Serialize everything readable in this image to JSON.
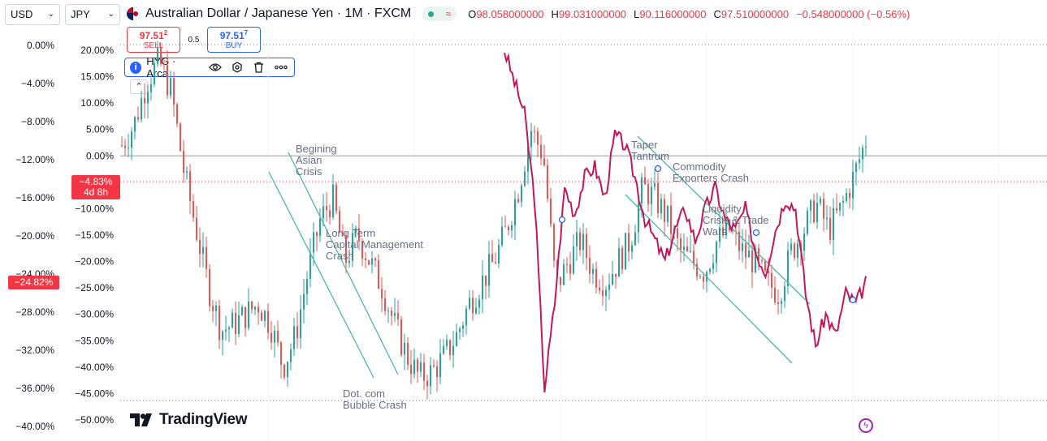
{
  "toolbar": {
    "left_currency": "USD",
    "right_currency": "JPY"
  },
  "header": {
    "title": "Australian Dollar / Japanese Yen · 1M · FXCM",
    "status_icon": "market-open-dot",
    "delay_icon": "approx-icon",
    "ohlc": [
      {
        "label": "O",
        "value": "98.058000000"
      },
      {
        "label": "H",
        "value": "99.031000000"
      },
      {
        "label": "L",
        "value": "90.116000000"
      },
      {
        "label": "C",
        "value": "97.510000000"
      }
    ],
    "change": "−0.548000000 (−0.56%)"
  },
  "trade": {
    "sell_price": "97.51",
    "sell_price_sup": "2",
    "sell_label": "SELL",
    "spread": "0.5",
    "buy_price": "97.51",
    "buy_price_sup": "7",
    "buy_label": "BUY"
  },
  "compare": {
    "symbol": "HYG · Arca",
    "icons": [
      "eye-icon",
      "settings-icon",
      "trash-icon",
      "more-icon"
    ]
  },
  "badges": {
    "left_top": "−4.83%",
    "left_bottom": "4d 8h",
    "mid": "−24.82%"
  },
  "branding": {
    "logo_text": "TradingView"
  },
  "colors": {
    "up": "#26a69a",
    "down": "#ef5350",
    "compare_line": "#c2185b",
    "trend": "#4db6ac",
    "annotation": "#667085",
    "grid": "#f0f3fa"
  },
  "chart_data": {
    "type": "candlestick",
    "axes": {
      "outer_left": {
        "ticks": [
          "0.00%",
          "−4.00%",
          "−8.00%",
          "−12.00%",
          "−16.00%",
          "−20.00%",
          "−24.00%",
          "−28.00%",
          "−32.00%",
          "−36.00%",
          "−40.00%"
        ],
        "range": [
          -40,
          0
        ]
      },
      "inner_left": {
        "ticks": [
          "20.00%",
          "15.00%",
          "10.00%",
          "5.00%",
          "0.00%",
          "−5.00%",
          "−10.00%",
          "−15.00%",
          "−20.00%",
          "−25.00%",
          "−30.00%",
          "−35.00%",
          "−40.00%",
          "−45.00%",
          "−50.00%"
        ],
        "range": [
          -50,
          20
        ]
      }
    },
    "main_series_trace": [
      [
        0,
        2
      ],
      [
        1,
        6
      ],
      [
        2,
        14
      ],
      [
        3,
        18
      ],
      [
        4,
        12
      ],
      [
        5,
        -3
      ],
      [
        6,
        -14
      ],
      [
        7,
        -25
      ],
      [
        8,
        -33
      ],
      [
        9,
        -32
      ],
      [
        10,
        -30
      ],
      [
        11,
        -28
      ],
      [
        12,
        -32
      ],
      [
        13,
        -40
      ],
      [
        14,
        -34
      ],
      [
        15,
        -22
      ],
      [
        16,
        -12
      ],
      [
        17,
        -8
      ],
      [
        18,
        -20
      ],
      [
        19,
        -15
      ],
      [
        20,
        -20
      ],
      [
        21,
        -25
      ],
      [
        22,
        -32
      ],
      [
        23,
        -38
      ],
      [
        24,
        -42
      ],
      [
        25,
        -41
      ],
      [
        26,
        -38
      ],
      [
        27,
        -34
      ],
      [
        28,
        -28
      ],
      [
        29,
        -24
      ],
      [
        30,
        -20
      ],
      [
        31,
        -14
      ],
      [
        32,
        -6
      ],
      [
        33,
        5
      ],
      [
        34,
        0
      ],
      [
        35,
        -25
      ],
      [
        36,
        -20
      ],
      [
        37,
        -16
      ],
      [
        38,
        -22
      ],
      [
        39,
        -24
      ],
      [
        40,
        -20
      ],
      [
        41,
        -16
      ],
      [
        42,
        -6
      ],
      [
        43,
        -8
      ],
      [
        44,
        -12
      ],
      [
        45,
        -18
      ],
      [
        46,
        -20
      ],
      [
        47,
        -22
      ],
      [
        48,
        -16
      ],
      [
        49,
        -14
      ],
      [
        50,
        -18
      ],
      [
        51,
        -20
      ],
      [
        52,
        -24
      ],
      [
        53,
        -26
      ],
      [
        54,
        -18
      ],
      [
        55,
        -14
      ],
      [
        56,
        -9
      ],
      [
        57,
        -14
      ],
      [
        58,
        -10
      ],
      [
        59,
        -4
      ],
      [
        60,
        3
      ]
    ],
    "compare_series": {
      "name": "HYG · Arca",
      "trace": [
        [
          0,
          20
        ],
        [
          1,
          14
        ],
        [
          2,
          8
        ],
        [
          3,
          -8
        ],
        [
          4,
          -44
        ],
        [
          5,
          -28
        ],
        [
          6,
          -6
        ],
        [
          7,
          -11
        ],
        [
          8,
          -4
        ],
        [
          9,
          -2
        ],
        [
          10,
          -8
        ],
        [
          11,
          4
        ],
        [
          12,
          2
        ],
        [
          13,
          -4
        ],
        [
          14,
          -12
        ],
        [
          15,
          -16
        ],
        [
          16,
          -20
        ],
        [
          17,
          -14
        ],
        [
          18,
          -10
        ],
        [
          19,
          -16
        ],
        [
          20,
          -10
        ],
        [
          21,
          -6
        ],
        [
          22,
          -12
        ],
        [
          23,
          -14
        ],
        [
          24,
          -10
        ],
        [
          25,
          -18
        ],
        [
          26,
          -22
        ],
        [
          27,
          -14
        ],
        [
          28,
          -8
        ],
        [
          29,
          -10
        ],
        [
          30,
          -26
        ],
        [
          31,
          -36
        ],
        [
          32,
          -30
        ],
        [
          33,
          -34
        ],
        [
          34,
          -26
        ],
        [
          35,
          -28
        ],
        [
          36,
          -24
        ]
      ]
    },
    "annotations": [
      {
        "text": [
          "Begining",
          "Asian",
          "Crisis"
        ]
      },
      {
        "text": [
          "Long Term",
          "Capital Management",
          "Crash"
        ]
      },
      {
        "text": [
          "Dot. com",
          "Bubble Crash"
        ]
      },
      {
        "text": [
          "Taper",
          "Tantrum"
        ]
      },
      {
        "text": [
          "Commodity",
          "Exporters Crash"
        ]
      },
      {
        "text": [
          "Liquidity",
          "Crisis & Trade",
          "Wars"
        ]
      }
    ]
  }
}
